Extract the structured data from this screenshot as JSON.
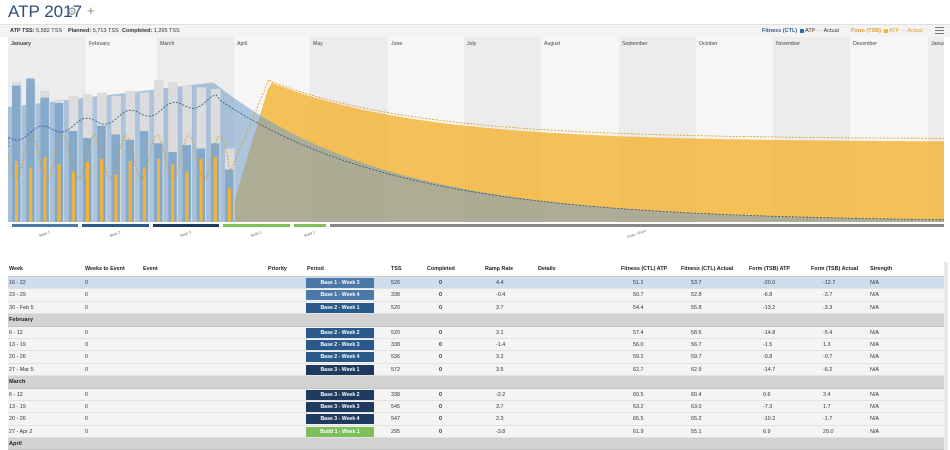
{
  "app": {
    "title": "ATP 2017",
    "gear_icon": "gear-icon",
    "plus_icon": "plus-icon"
  },
  "stats": {
    "atp_tss_label": "ATP TSS:",
    "atp_tss_value": "5,582 TSS",
    "planned_label": "Planned:",
    "planned_value": "5,713 TSS",
    "completed_label": "Completed:",
    "completed_value": "1,265 TSS"
  },
  "legend": {
    "fitness_label": "Fitness (CTL)",
    "fitness_atp": "ATP",
    "fitness_actual": "Actual",
    "form_label": "Form (TSB)",
    "form_atp": "ATP",
    "form_actual": "Actual",
    "colors": {
      "fitness": "#2e6da4",
      "form": "#f5b335",
      "planned_bar": "#dcdcdc",
      "actual_bar": "#6f9cc7"
    }
  },
  "chart_data": {
    "type": "area",
    "months": [
      "January",
      "February",
      "March",
      "April",
      "May",
      "June",
      "July",
      "August",
      "September",
      "October",
      "November",
      "December",
      "January"
    ],
    "week_bars": {
      "planned": [
        0.8,
        0.78,
        0.75,
        0.7,
        0.72,
        0.73,
        0.74,
        0.72,
        0.75,
        0.74,
        0.81,
        0.8,
        0.78,
        0.77,
        0.76,
        0.42
      ],
      "actual": [
        0.78,
        0.82,
        0.71,
        0.68,
        0.52,
        0.48,
        0.55,
        0.5,
        0.47,
        0.52,
        0.45,
        0.4,
        0.44,
        0.42,
        0.45,
        0.3
      ],
      "orange": [
        0.58,
        0.52,
        0.62,
        0.55,
        0.48,
        0.57,
        0.6,
        0.45,
        0.58,
        0.52,
        0.6,
        0.55,
        0.48,
        0.6,
        0.62,
        0.32
      ]
    },
    "phases": [
      {
        "label": "Base 1",
        "color": "#4a78a8"
      },
      {
        "label": "Base 2",
        "color": "#2a5a8c"
      },
      {
        "label": "Base 3",
        "color": "#1e3a5f"
      },
      {
        "label": "Build 1",
        "color": "#7cc05a"
      },
      {
        "label": "Build 2",
        "color": "#7cc05a"
      },
      {
        "label": "Peak / Race",
        "color": "#888888"
      }
    ]
  },
  "table": {
    "headers": {
      "week": "Week",
      "weeks_to_event": "Weeks to Event",
      "event": "Event",
      "priority": "Priority",
      "period": "Period",
      "tss": "TSS",
      "completed": "Completed",
      "ramp_rate": "Ramp Rate",
      "details": "Details",
      "fit_atp": "Fitness (CTL) ATP",
      "fit_actual": "Fitness (CTL) Actual",
      "form_atp": "Form (TSB) ATP",
      "form_actual": "Form (TSB) Actual",
      "strength": "Strength"
    },
    "rows": [
      {
        "week": "16 - 22",
        "wte": "0",
        "period": "Base 1 - Week 3",
        "period_color": "#4a78a8",
        "tss": "526",
        "completed": "0",
        "ramp": "4.4",
        "fit_atp": "51.1",
        "fit_actual": "53.7",
        "form_atp": "-20.0",
        "form_actual": "-12.7",
        "strength": "N/A",
        "selected": true
      },
      {
        "week": "23 - 29",
        "wte": "0",
        "period": "Base 1 - Week 4",
        "period_color": "#4a78a8",
        "tss": "338",
        "completed": "0",
        "ramp": "-0.4",
        "fit_atp": "50.7",
        "fit_actual": "52.8",
        "form_atp": "-6.8",
        "form_actual": "-3.7",
        "strength": "N/A"
      },
      {
        "week": "30 - Feb 5",
        "wte": "0",
        "period": "Base 2 - Week 1",
        "period_color": "#2a5a8c",
        "tss": "520",
        "completed": "0",
        "ramp": "3.7",
        "fit_atp": "54.4",
        "fit_actual": "55.8",
        "form_atp": "-13.2",
        "form_actual": "-3.3",
        "strength": "N/A"
      },
      {
        "month": "February"
      },
      {
        "week": "6 - 12",
        "wte": "0",
        "period": "Base 2 - Week 2",
        "period_color": "#2a5a8c",
        "tss": "520",
        "completed": "0",
        "ramp": "3.1",
        "fit_atp": "57.4",
        "fit_actual": "58.5",
        "form_atp": "-14.8",
        "form_actual": "-5.4",
        "strength": "N/A"
      },
      {
        "week": "13 - 19",
        "wte": "0",
        "period": "Base 2 - Week 3",
        "period_color": "#2a5a8c",
        "tss": "338",
        "completed": "0",
        "ramp": "-1.4",
        "fit_atp": "56.0",
        "fit_actual": "56.7",
        "form_atp": "-1.5",
        "form_actual": "1.3",
        "strength": "N/A"
      },
      {
        "week": "20 - 26",
        "wte": "0",
        "period": "Base 2 - Week 4",
        "period_color": "#2a5a8c",
        "tss": "536",
        "completed": "0",
        "ramp": "3.2",
        "fit_atp": "59.2",
        "fit_actual": "59.7",
        "form_atp": "-9.8",
        "form_actual": "-0.7",
        "strength": "N/A"
      },
      {
        "week": "27 - Mar 5",
        "wte": "0",
        "period": "Base 3 - Week 1",
        "period_color": "#1e3a5f",
        "tss": "572",
        "completed": "0",
        "ramp": "3.5",
        "fit_atp": "62.7",
        "fit_actual": "62.9",
        "form_atp": "-14.7",
        "form_actual": "-6.2",
        "strength": "N/A"
      },
      {
        "month": "March"
      },
      {
        "week": "6 - 12",
        "wte": "0",
        "period": "Base 3 - Week 2",
        "period_color": "#1e3a5f",
        "tss": "338",
        "completed": "0",
        "ramp": "-2.2",
        "fit_atp": "60.5",
        "fit_actual": "60.4",
        "form_atp": "0.6",
        "form_actual": "3.4",
        "strength": "N/A"
      },
      {
        "week": "13 - 19",
        "wte": "0",
        "period": "Base 3 - Week 3",
        "period_color": "#1e3a5f",
        "tss": "545",
        "completed": "0",
        "ramp": "3.7",
        "fit_atp": "63.2",
        "fit_actual": "63.0",
        "form_atp": "-7.3",
        "form_actual": "1.7",
        "strength": "N/A"
      },
      {
        "week": "20 - 26",
        "wte": "0",
        "period": "Base 3 - Week 4",
        "period_color": "#1e3a5f",
        "tss": "547",
        "completed": "0",
        "ramp": "2.3",
        "fit_atp": "65.5",
        "fit_actual": "65.2",
        "form_atp": "-10.2",
        "form_actual": "-1.7",
        "strength": "N/A"
      },
      {
        "week": "27 - Apr 2",
        "wte": "0",
        "period": "Build 1 - Week 1",
        "period_color": "#7cc05a",
        "tss": "295",
        "completed": "0",
        "ramp": "-3.8",
        "fit_atp": "61.9",
        "fit_actual": "55.1",
        "form_atp": "6.9",
        "form_actual": "29.0",
        "strength": "N/A"
      },
      {
        "month": "April"
      }
    ]
  }
}
